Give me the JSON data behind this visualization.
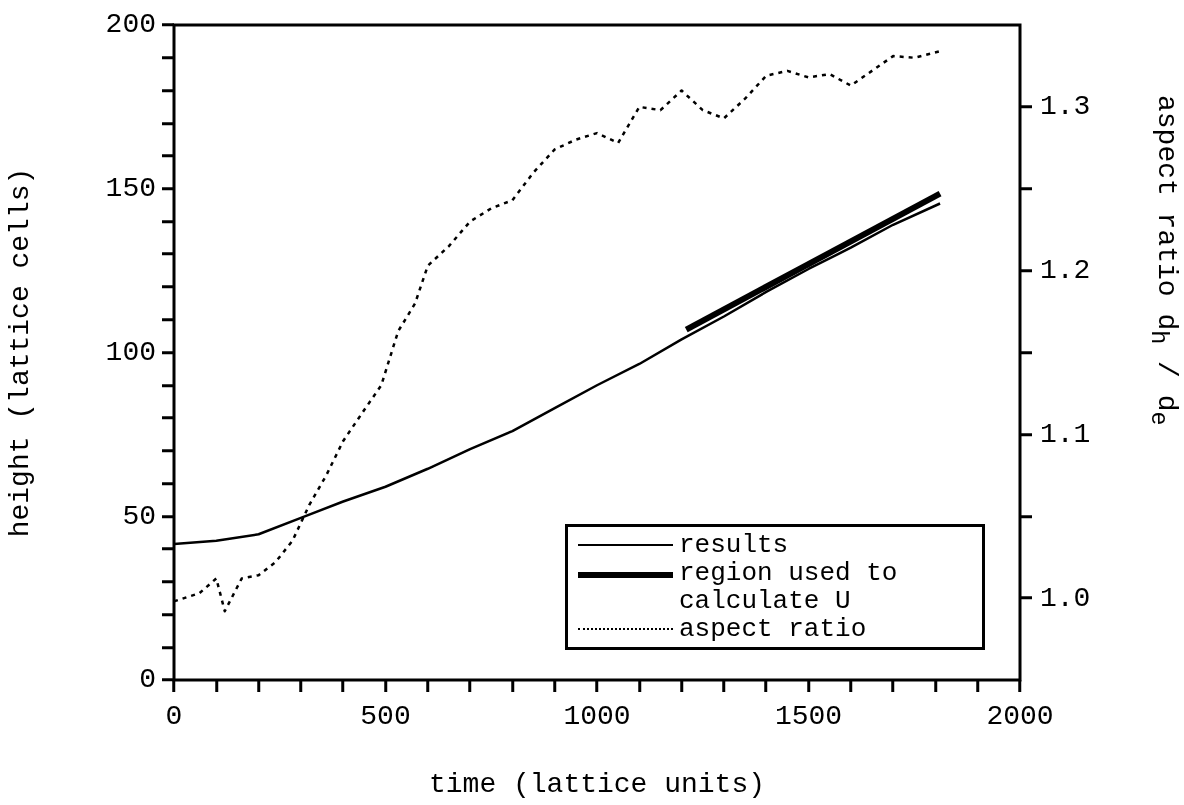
{
  "chart_data": {
    "type": "line",
    "xlabel": "time (lattice units)",
    "ylabel": "height (lattice cells)",
    "y2label": "aspect ratio d$_{h}$ / d$_{e}$",
    "xlim": [
      0,
      2000
    ],
    "xticks": [
      0,
      {
        "value": 100,
        "label": null
      },
      {
        "value": 200,
        "label": null
      },
      {
        "value": 300,
        "label": null
      },
      {
        "value": 400,
        "label": null
      },
      500,
      {
        "value": 600,
        "label": null
      },
      {
        "value": 700,
        "label": null
      },
      {
        "value": 800,
        "label": null
      },
      {
        "value": 900,
        "label": null
      },
      1000,
      {
        "value": 1100,
        "label": null
      },
      {
        "value": 1200,
        "label": null
      },
      {
        "value": 1300,
        "label": null
      },
      {
        "value": 1400,
        "label": null
      },
      1500,
      {
        "value": 1600,
        "label": null
      },
      {
        "value": 1700,
        "label": null
      },
      {
        "value": 1800,
        "label": null
      },
      {
        "value": 1900,
        "label": null
      },
      2000
    ],
    "ylim": [
      0,
      200
    ],
    "yticks": [
      0,
      {
        "value": 10,
        "label": null
      },
      {
        "value": 20,
        "label": null
      },
      {
        "value": 30,
        "label": null
      },
      {
        "value": 40,
        "label": null
      },
      50,
      {
        "value": 60,
        "label": null
      },
      {
        "value": 70,
        "label": null
      },
      {
        "value": 80,
        "label": null
      },
      {
        "value": 90,
        "label": null
      },
      100,
      {
        "value": 110,
        "label": null
      },
      {
        "value": 120,
        "label": null
      },
      {
        "value": 130,
        "label": null
      },
      {
        "value": 140,
        "label": null
      },
      150,
      {
        "value": 160,
        "label": null
      },
      {
        "value": 170,
        "label": null
      },
      {
        "value": 180,
        "label": null
      },
      {
        "value": 190,
        "label": null
      },
      200
    ],
    "y2lim": [
      0.95,
      1.35
    ],
    "y2ticks": [
      {
        "value": 1.0,
        "label": "1.0"
      },
      {
        "value": 1.05,
        "label": null
      },
      {
        "value": 1.1,
        "label": "1.1"
      },
      {
        "value": 1.15,
        "label": null
      },
      {
        "value": 1.2,
        "label": "1.2"
      },
      {
        "value": 1.25,
        "label": null
      },
      {
        "value": 1.3,
        "label": "1.3"
      }
    ],
    "grid": false,
    "legend": "bottom right",
    "marker": "none",
    "series": [
      {
        "name": "results",
        "color": "#000000",
        "line_style": "solid",
        "x": [
          0,
          100,
          200,
          300,
          400,
          500,
          600,
          700,
          800,
          900,
          1000,
          1100,
          1200,
          1300,
          1400,
          1500,
          1600,
          1700,
          1811
        ],
        "values": [
          41.5,
          42.5,
          44.5,
          49.5,
          54.5,
          59,
          64.5,
          70.5,
          76,
          83,
          90,
          96.5,
          104,
          111,
          118.5,
          125.5,
          132,
          139,
          145.5
        ]
      },
      {
        "name": "region used to calculate U",
        "color": "#000000",
        "line_style": "solid",
        "x": [
          1211,
          1811
        ],
        "values": [
          107,
          148.5
        ]
      },
      {
        "name": "aspect ratio",
        "color": "#000000",
        "line_style": "dotted",
        "axis": "y2",
        "x": [
          0,
          60,
          100,
          120,
          160,
          200,
          240,
          280,
          320,
          360,
          400,
          450,
          490,
          530,
          570,
          600,
          650,
          700,
          750,
          800,
          850,
          900,
          950,
          1000,
          1050,
          1100,
          1150,
          1200,
          1250,
          1300,
          1350,
          1400,
          1450,
          1500,
          1550,
          1600,
          1650,
          1700,
          1750,
          1811
        ],
        "values": [
          0.998,
          1.003,
          1.012,
          0.992,
          1.012,
          1.014,
          1.022,
          1.035,
          1.057,
          1.075,
          1.096,
          1.115,
          1.13,
          1.163,
          1.18,
          1.203,
          1.215,
          1.23,
          1.238,
          1.243,
          1.26,
          1.274,
          1.28,
          1.284,
          1.278,
          1.3,
          1.298,
          1.31,
          1.298,
          1.293,
          1.305,
          1.319,
          1.322,
          1.318,
          1.32,
          1.313,
          1.322,
          1.331,
          1.33,
          1.334
        ]
      }
    ]
  }
}
